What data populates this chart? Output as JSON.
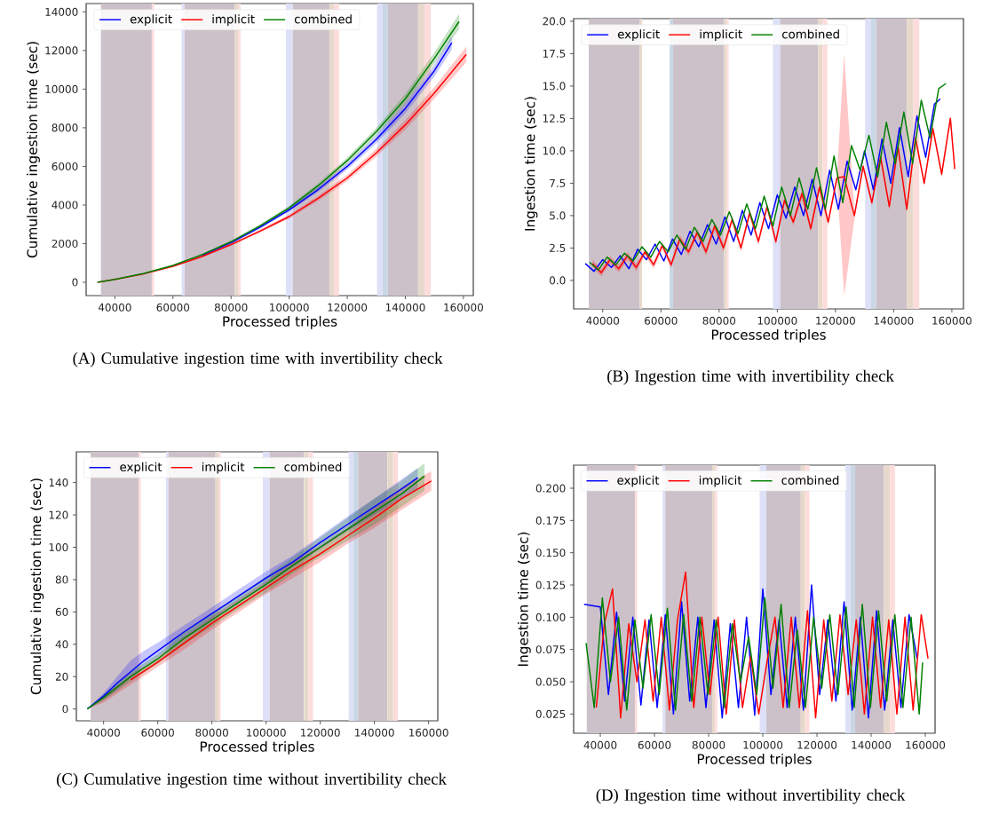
{
  "chart_data": [
    {
      "type": "line",
      "title": "(A) Cumulative ingestion time with invertibility check",
      "xlabel": "Processed triples",
      "ylabel": "Cumulative ingestion time (sec)",
      "xlim": [
        30100,
        163400
      ],
      "ylim": [
        -690,
        14430
      ],
      "xticks": [
        40000,
        60000,
        80000,
        100000,
        120000,
        140000,
        160000
      ],
      "yticks": [
        0,
        2000,
        4000,
        6000,
        8000,
        10000,
        12000,
        14000
      ],
      "legend": "top left",
      "bands": [
        {
          "axis": "x",
          "from": 35200,
          "to": 52700,
          "color": "#cdc1c9"
        },
        {
          "axis": "x",
          "from": 52700,
          "to": 53500,
          "color": "#fddcdc"
        },
        {
          "axis": "x",
          "from": 63000,
          "to": 64000,
          "color": "#dde0f7"
        },
        {
          "axis": "x",
          "from": 64000,
          "to": 81250,
          "color": "#cdc1c9"
        },
        {
          "axis": "x",
          "from": 81250,
          "to": 82600,
          "color": "#e6d9cb"
        },
        {
          "axis": "x",
          "from": 82600,
          "to": 83300,
          "color": "#fddcdc"
        },
        {
          "axis": "x",
          "from": 98900,
          "to": 101200,
          "color": "#dde0f7"
        },
        {
          "axis": "x",
          "from": 101200,
          "to": 113850,
          "color": "#cdc1c9"
        },
        {
          "axis": "x",
          "from": 113850,
          "to": 115400,
          "color": "#e6d9cb"
        },
        {
          "axis": "x",
          "from": 115400,
          "to": 117200,
          "color": "#fddcdc"
        },
        {
          "axis": "x",
          "from": 130250,
          "to": 132200,
          "color": "#dde0f7"
        },
        {
          "axis": "x",
          "from": 132200,
          "to": 134000,
          "color": "#c9d7e5"
        },
        {
          "axis": "x",
          "from": 134000,
          "to": 144400,
          "color": "#cdc1c9"
        },
        {
          "axis": "x",
          "from": 144400,
          "to": 146550,
          "color": "#e6d9cb"
        },
        {
          "axis": "x",
          "from": 146550,
          "to": 148800,
          "color": "#fddcdc"
        }
      ],
      "series": [
        {
          "name": "explicit",
          "color": "#0000ff",
          "x": [
            34000,
            40000,
            50000,
            60000,
            70000,
            80000,
            90000,
            100000,
            110000,
            120000,
            130000,
            140000,
            150000,
            156000
          ],
          "values": [
            null,
            null,
            null,
            null,
            1400,
            2050,
            2850,
            3750,
            4800,
            6000,
            7400,
            9000,
            10950,
            12400
          ],
          "lower": [
            0,
            140,
            430,
            820,
            1360,
            1990,
            2770,
            3650,
            4670,
            5840,
            7200,
            8750,
            10650,
            12050
          ],
          "upper": [
            0,
            160,
            470,
            880,
            1440,
            2110,
            2930,
            3850,
            4930,
            6160,
            7600,
            9250,
            11250,
            12750
          ]
        },
        {
          "name": "implicit",
          "color": "#ff0000",
          "x": [
            34000,
            40000,
            50000,
            60000,
            70000,
            80000,
            90000,
            100000,
            110000,
            120000,
            130000,
            140000,
            150000,
            161000
          ],
          "values": [
            0,
            150,
            440,
            820,
            1330,
            1950,
            2650,
            3400,
            4350,
            5400,
            6700,
            8150,
            9800,
            11800
          ],
          "lower": [
            0,
            135,
            420,
            790,
            1290,
            1890,
            2570,
            3300,
            4220,
            5240,
            6500,
            7900,
            9500,
            11400
          ],
          "upper": [
            0,
            155,
            460,
            850,
            1370,
            2010,
            2730,
            3500,
            4480,
            5560,
            6900,
            8400,
            10100,
            12200
          ]
        },
        {
          "name": "combined",
          "color": "#008000",
          "x": [
            34000,
            40000,
            50000,
            60000,
            70000,
            80000,
            90000,
            100000,
            110000,
            120000,
            130000,
            140000,
            150000,
            158500
          ],
          "values": [
            0,
            150,
            460,
            870,
            1430,
            2100,
            2920,
            3850,
            5000,
            6300,
            7800,
            9500,
            11600,
            13500
          ],
          "lower": [
            0,
            140,
            440,
            840,
            1390,
            2040,
            2840,
            3750,
            4870,
            6140,
            7600,
            9250,
            11300,
            13100
          ],
          "upper": [
            0,
            160,
            480,
            900,
            1470,
            2160,
            3000,
            3950,
            5130,
            6460,
            8000,
            9750,
            11900,
            13900
          ]
        }
      ]
    },
    {
      "type": "line",
      "title": "(B) Ingestion time with invertibility check",
      "xlabel": "Processed triples",
      "ylabel": "Ingestion time (sec)",
      "xlim": [
        30000,
        164000
      ],
      "ylim": [
        -2.2,
        20.2
      ],
      "xticks": [
        40000,
        60000,
        80000,
        100000,
        120000,
        140000,
        160000
      ],
      "yticks": [
        {
          "value": 0,
          "label": "0.0"
        },
        {
          "value": 2.5,
          "label": "2.5"
        },
        {
          "value": 5,
          "label": "5.0"
        },
        {
          "value": 7.5,
          "label": "7.5"
        },
        {
          "value": 10,
          "label": "10.0"
        },
        {
          "value": 12.5,
          "label": "12.5"
        },
        {
          "value": 15,
          "label": "15.0"
        },
        {
          "value": 17.5,
          "label": "17.5"
        },
        {
          "value": 20,
          "label": "20.0"
        }
      ],
      "legend": "top left",
      "bands": [
        {
          "axis": "x",
          "from": 35200,
          "to": 52700,
          "color": "#cdc1c9"
        },
        {
          "axis": "x",
          "from": 52700,
          "to": 53500,
          "color": "#e6d9cb"
        },
        {
          "axis": "x",
          "from": 63000,
          "to": 64200,
          "color": "#c9d7e5"
        },
        {
          "axis": "x",
          "from": 64200,
          "to": 81700,
          "color": "#cdc1c9"
        },
        {
          "axis": "x",
          "from": 81700,
          "to": 82600,
          "color": "#e6d9cb"
        },
        {
          "axis": "x",
          "from": 82600,
          "to": 83300,
          "color": "#fddcdc"
        },
        {
          "axis": "x",
          "from": 98500,
          "to": 101000,
          "color": "#dde0f7"
        },
        {
          "axis": "x",
          "from": 101000,
          "to": 114000,
          "color": "#cdc1c9"
        },
        {
          "axis": "x",
          "from": 114000,
          "to": 115600,
          "color": "#e6d9cb"
        },
        {
          "axis": "x",
          "from": 115600,
          "to": 117200,
          "color": "#fddcdc"
        },
        {
          "axis": "x",
          "from": 130200,
          "to": 132200,
          "color": "#dde0f7"
        },
        {
          "axis": "x",
          "from": 132200,
          "to": 134000,
          "color": "#c9d7e5"
        },
        {
          "axis": "x",
          "from": 134000,
          "to": 144500,
          "color": "#cdc1c9"
        },
        {
          "axis": "x",
          "from": 144500,
          "to": 146700,
          "color": "#e6d9cb"
        },
        {
          "axis": "x",
          "from": 146700,
          "to": 148800,
          "color": "#fddcdc"
        }
      ],
      "series": [
        {
          "name": "explicit",
          "color": "#0000ff",
          "x": [
            34000,
            37000,
            40000,
            43000,
            46000,
            49000,
            52000,
            55000,
            58000,
            61000,
            64000,
            67000,
            70000,
            73000,
            76000,
            79000,
            82000,
            85000,
            88000,
            91000,
            94000,
            97000,
            100000,
            103000,
            106000,
            109000,
            112000,
            115000,
            118000,
            121000,
            124000,
            127000,
            130000,
            133000,
            136000,
            139000,
            142000,
            145000,
            148000,
            151000,
            154000,
            156000
          ],
          "values": [
            1.3,
            0.7,
            1.6,
            1.0,
            1.9,
            0.9,
            2.4,
            1.6,
            2.8,
            1.5,
            3.2,
            2.0,
            3.8,
            2.6,
            4.3,
            2.8,
            4.9,
            3.0,
            5.4,
            3.5,
            6.0,
            4.0,
            6.6,
            4.8,
            7.2,
            5.0,
            7.8,
            5.0,
            8.5,
            5.5,
            9.2,
            7.0,
            10.0,
            7.0,
            10.9,
            7.5,
            11.8,
            8.0,
            12.7,
            9.5,
            13.6,
            14.0
          ]
        },
        {
          "name": "implicit",
          "color": "#ff0000",
          "x": [
            36500,
            39500,
            42500,
            45500,
            48500,
            51500,
            54500,
            57500,
            60500,
            63500,
            66500,
            69500,
            72500,
            75500,
            78500,
            81500,
            84500,
            87500,
            90500,
            93500,
            96500,
            99500,
            102500,
            105500,
            108500,
            111500,
            114500,
            117500,
            120500,
            123000,
            126500,
            129500,
            132500,
            135500,
            138500,
            141500,
            144500,
            147500,
            150500,
            153500,
            156500,
            159500,
            161000
          ],
          "values": [
            1.3,
            0.6,
            1.6,
            0.9,
            1.9,
            1.0,
            2.2,
            1.2,
            2.7,
            1.2,
            3.2,
            2.2,
            3.7,
            2.2,
            4.2,
            2.5,
            4.7,
            2.5,
            5.2,
            3.0,
            5.7,
            3.0,
            6.2,
            4.5,
            6.7,
            4.0,
            7.2,
            4.5,
            7.9,
            8.0,
            5.0,
            8.8,
            6.0,
            9.5,
            5.7,
            10.3,
            5.5,
            11.0,
            7.5,
            11.7,
            8.2,
            12.5,
            8.6
          ],
          "lower": [
            1.0,
            0.3,
            1.3,
            0.6,
            1.6,
            0.7,
            1.9,
            0.9,
            2.4,
            0.9,
            2.9,
            1.9,
            3.4,
            1.9,
            3.9,
            2.2,
            4.4,
            2.2,
            4.9,
            2.7,
            5.4,
            2.7,
            5.9,
            4.2,
            6.4,
            3.7,
            6.9,
            4.2,
            7.6,
            -1.2,
            4.7,
            8.5,
            5.7,
            9.2,
            5.4,
            10.0,
            5.2,
            10.7,
            7.2,
            11.4,
            7.9,
            12.2,
            8.3
          ],
          "upper": [
            1.6,
            0.9,
            1.9,
            1.2,
            2.2,
            1.3,
            2.5,
            1.5,
            3.0,
            1.5,
            3.5,
            2.5,
            4.0,
            2.5,
            4.5,
            2.8,
            5.0,
            2.8,
            5.5,
            3.3,
            6.0,
            3.3,
            6.5,
            4.8,
            7.0,
            4.3,
            7.5,
            4.8,
            8.2,
            17.5,
            5.3,
            9.1,
            6.3,
            9.8,
            6.0,
            10.6,
            5.8,
            11.3,
            7.8,
            12.0,
            8.5,
            12.8,
            8.9
          ]
        },
        {
          "name": "combined",
          "color": "#008000",
          "x": [
            35500,
            38500,
            41500,
            44500,
            47500,
            50500,
            53500,
            56500,
            59500,
            62500,
            65500,
            68500,
            71500,
            74500,
            77500,
            80500,
            83500,
            86500,
            89500,
            92500,
            95500,
            98500,
            101500,
            104500,
            107500,
            110500,
            113500,
            116500,
            119500,
            122500,
            125500,
            128500,
            131500,
            134500,
            137500,
            140500,
            143500,
            146500,
            149500,
            152500,
            155500,
            158000
          ],
          "values": [
            1.4,
            0.8,
            1.8,
            1.2,
            2.1,
            1.5,
            2.6,
            1.8,
            3.0,
            2.2,
            3.5,
            2.4,
            4.1,
            3.0,
            4.7,
            3.5,
            5.3,
            3.6,
            5.9,
            4.0,
            6.5,
            4.2,
            7.2,
            5.0,
            7.9,
            5.5,
            8.7,
            5.5,
            9.6,
            6.0,
            10.4,
            8.5,
            11.2,
            8.0,
            12.2,
            9.0,
            13.0,
            9.0,
            13.9,
            11.0,
            14.8,
            15.2
          ]
        }
      ]
    },
    {
      "type": "line",
      "title": "(C) Cumulative ingestion time without invertibility check",
      "xlabel": "Processed triples",
      "ylabel": "Cumulative ingestion time (sec)",
      "xlim": [
        29940,
        163400
      ],
      "ylim": [
        -7.3,
        159
      ],
      "xticks": [
        40000,
        60000,
        80000,
        100000,
        120000,
        140000,
        160000
      ],
      "yticks": [
        0,
        20,
        40,
        60,
        80,
        100,
        120,
        140
      ],
      "legend": "top left",
      "bands": [
        {
          "axis": "x",
          "from": 35200,
          "to": 52900,
          "color": "#cdc1c9"
        },
        {
          "axis": "x",
          "from": 52900,
          "to": 53700,
          "color": "#fddcdc"
        },
        {
          "axis": "x",
          "from": 63000,
          "to": 64000,
          "color": "#dde0f7"
        },
        {
          "axis": "x",
          "from": 64000,
          "to": 81300,
          "color": "#cdc1c9"
        },
        {
          "axis": "x",
          "from": 81300,
          "to": 82400,
          "color": "#e6d9cb"
        },
        {
          "axis": "x",
          "from": 82400,
          "to": 83200,
          "color": "#fddcdc"
        },
        {
          "axis": "x",
          "from": 98800,
          "to": 101300,
          "color": "#dde0f7"
        },
        {
          "axis": "x",
          "from": 101300,
          "to": 114000,
          "color": "#cdc1c9"
        },
        {
          "axis": "x",
          "from": 114000,
          "to": 115700,
          "color": "#e6d9cb"
        },
        {
          "axis": "x",
          "from": 115700,
          "to": 117300,
          "color": "#fddcdc"
        },
        {
          "axis": "x",
          "from": 130500,
          "to": 132300,
          "color": "#dde0f7"
        },
        {
          "axis": "x",
          "from": 132300,
          "to": 134000,
          "color": "#c9d7e5"
        },
        {
          "axis": "x",
          "from": 134000,
          "to": 144800,
          "color": "#cdc1c9"
        },
        {
          "axis": "x",
          "from": 144800,
          "to": 146900,
          "color": "#e6d9cb"
        },
        {
          "axis": "x",
          "from": 146900,
          "to": 148700,
          "color": "#fddcdc"
        }
      ],
      "series": [
        {
          "name": "explicit",
          "color": "#0000ff",
          "x": [
            34000,
            40000,
            45000,
            50000,
            55000,
            60000,
            70000,
            80000,
            90000,
            100000,
            110000,
            120000,
            130000,
            140000,
            150000,
            156000
          ],
          "values": [
            0,
            8,
            16,
            23,
            30,
            36,
            48,
            59,
            70,
            81,
            91,
            103,
            114,
            125,
            136,
            143
          ],
          "lower": [
            0,
            6,
            12,
            19,
            26,
            32,
            44,
            55,
            66,
            77,
            88,
            99,
            110,
            120,
            130,
            136
          ],
          "upper": [
            0,
            10,
            20,
            30,
            36,
            41,
            52,
            63,
            74,
            85,
            95,
            107,
            119,
            130,
            142,
            149
          ]
        },
        {
          "name": "implicit",
          "color": "#ff0000",
          "x": [
            34000,
            40000,
            50000,
            60000,
            70000,
            80000,
            90000,
            100000,
            110000,
            120000,
            130000,
            140000,
            150000,
            161000
          ],
          "values": [
            null,
            null,
            18,
            29,
            41,
            53,
            64,
            75,
            86,
            96,
            107,
            118,
            130,
            141
          ],
          "lower": [
            0,
            4,
            15,
            26,
            37,
            49,
            60,
            71,
            81,
            91,
            102,
            112,
            123,
            135
          ],
          "upper": [
            0,
            8,
            21,
            32,
            45,
            57,
            68,
            79,
            91,
            101,
            112,
            124,
            137,
            147
          ]
        },
        {
          "name": "combined",
          "color": "#008000",
          "x": [
            34000,
            40000,
            50000,
            60000,
            70000,
            80000,
            90000,
            100000,
            110000,
            120000,
            130000,
            140000,
            150000,
            158500
          ],
          "values": [
            0,
            7,
            20,
            31,
            44,
            55,
            66,
            77,
            89,
            100,
            111,
            122,
            133,
            144
          ],
          "lower": [
            0,
            5,
            17,
            28,
            40,
            51,
            62,
            72,
            84,
            94,
            104,
            114,
            125,
            135
          ],
          "upper": [
            0,
            9,
            23,
            34,
            48,
            59,
            70,
            82,
            94,
            106,
            118,
            130,
            141,
            152
          ]
        }
      ]
    },
    {
      "type": "line",
      "title": "(D) Ingestion time without invertibility check",
      "xlabel": "Processed triples",
      "ylabel": "Ingestion time (sec)",
      "xlim": [
        30150,
        163600
      ],
      "ylim": [
        0.0101,
        0.2179
      ],
      "xticks": [
        40000,
        60000,
        80000,
        100000,
        120000,
        140000,
        160000
      ],
      "yticks": [
        {
          "value": 0.025,
          "label": "0.025"
        },
        {
          "value": 0.05,
          "label": "0.050"
        },
        {
          "value": 0.075,
          "label": "0.075"
        },
        {
          "value": 0.1,
          "label": "0.100"
        },
        {
          "value": 0.125,
          "label": "0.125"
        },
        {
          "value": 0.15,
          "label": "0.150"
        },
        {
          "value": 0.175,
          "label": "0.175"
        },
        {
          "value": 0.2,
          "label": "0.200"
        }
      ],
      "legend": "top left",
      "bands": [
        {
          "axis": "x",
          "from": 35000,
          "to": 52800,
          "color": "#cdc1c9"
        },
        {
          "axis": "x",
          "from": 52800,
          "to": 53600,
          "color": "#fddcdc"
        },
        {
          "axis": "x",
          "from": 63000,
          "to": 64000,
          "color": "#dde0f7"
        },
        {
          "axis": "x",
          "from": 64000,
          "to": 81300,
          "color": "#cdc1c9"
        },
        {
          "axis": "x",
          "from": 81300,
          "to": 82400,
          "color": "#e6d9cb"
        },
        {
          "axis": "x",
          "from": 82400,
          "to": 83200,
          "color": "#fddcdc"
        },
        {
          "axis": "x",
          "from": 98800,
          "to": 101300,
          "color": "#dde0f7"
        },
        {
          "axis": "x",
          "from": 101300,
          "to": 114000,
          "color": "#cdc1c9"
        },
        {
          "axis": "x",
          "from": 114000,
          "to": 115600,
          "color": "#e6d9cb"
        },
        {
          "axis": "x",
          "from": 115600,
          "to": 117200,
          "color": "#fddcdc"
        },
        {
          "axis": "x",
          "from": 130400,
          "to": 132300,
          "color": "#dde0f7"
        },
        {
          "axis": "x",
          "from": 132300,
          "to": 134100,
          "color": "#c9d7e5"
        },
        {
          "axis": "x",
          "from": 134100,
          "to": 144800,
          "color": "#cdc1c9"
        },
        {
          "axis": "x",
          "from": 144800,
          "to": 146900,
          "color": "#e6d9cb"
        },
        {
          "axis": "x",
          "from": 146900,
          "to": 148800,
          "color": "#fddcdc"
        }
      ],
      "series": [
        {
          "name": "explicit",
          "color": "#0000ff",
          "x": [
            34000,
            37000,
            40000,
            43000,
            46000,
            49000,
            52000,
            55000,
            58000,
            61000,
            64000,
            67000,
            70000,
            73000,
            76000,
            79000,
            82000,
            85000,
            88000,
            91000,
            94000,
            97000,
            100000,
            103000,
            106000,
            109000,
            112000,
            115000,
            118000,
            121000,
            124000,
            127000,
            130000,
            133000,
            136000,
            139000,
            142000,
            145000,
            148000,
            151000,
            154000,
            157000
          ],
          "values": [
            0.11,
            null,
            0.108,
            0.04,
            0.104,
            0.035,
            0.1,
            0.032,
            0.098,
            0.03,
            0.102,
            0.025,
            0.112,
            0.035,
            0.1,
            0.03,
            0.098,
            0.022,
            0.095,
            0.03,
            0.1,
            0.024,
            0.122,
            0.04,
            0.098,
            0.03,
            0.1,
            0.028,
            0.125,
            0.04,
            0.098,
            0.035,
            0.112,
            0.028,
            0.1,
            0.022,
            0.105,
            0.028,
            0.098,
            0.03,
            0.102,
            0.068
          ]
        },
        {
          "name": "implicit",
          "color": "#ff0000",
          "x": [
            38500,
            41500,
            44500,
            47500,
            50500,
            53500,
            56500,
            59500,
            62500,
            65500,
            68500,
            71500,
            74500,
            77500,
            80500,
            83500,
            86500,
            89500,
            92500,
            95500,
            98500,
            101500,
            104500,
            107500,
            110500,
            113500,
            116500,
            119500,
            122500,
            125500,
            128500,
            131500,
            134500,
            137500,
            140500,
            143500,
            146500,
            149500,
            152500,
            155500,
            158500,
            161000
          ],
          "values": [
            0.03,
            0.095,
            0.122,
            0.022,
            0.095,
            0.05,
            0.098,
            0.035,
            0.1,
            0.028,
            0.098,
            0.135,
            0.03,
            0.1,
            0.04,
            0.1,
            0.025,
            0.098,
            0.03,
            0.07,
            0.025,
            0.065,
            0.1,
            0.03,
            0.1,
            0.03,
            0.105,
            0.022,
            0.098,
            0.035,
            0.102,
            0.04,
            0.098,
            0.025,
            0.1,
            0.03,
            0.098,
            0.025,
            0.1,
            0.028,
            0.102,
            0.068
          ]
        },
        {
          "name": "combined",
          "color": "#008000",
          "x": [
            34750,
            37750,
            40750,
            43750,
            46750,
            49750,
            52750,
            55750,
            58750,
            61750,
            64750,
            67750,
            70750,
            73750,
            76750,
            79750,
            82750,
            85750,
            88750,
            91750,
            94750,
            97750,
            100750,
            103750,
            106750,
            109750,
            112750,
            115750,
            118750,
            121750,
            124750,
            127750,
            130750,
            133750,
            136750,
            139750,
            142750,
            145750,
            148750,
            151750,
            154750,
            157750,
            159000
          ],
          "values": [
            0.08,
            0.03,
            0.115,
            0.05,
            0.1,
            0.028,
            0.098,
            0.045,
            0.102,
            0.04,
            0.107,
            0.028,
            0.102,
            0.035,
            0.1,
            0.04,
            0.098,
            0.03,
            0.095,
            0.05,
            0.085,
            0.04,
            0.115,
            0.045,
            0.11,
            0.03,
            0.09,
            0.03,
            0.1,
            0.045,
            0.102,
            0.04,
            0.108,
            0.03,
            0.11,
            0.03,
            0.105,
            0.035,
            0.102,
            0.03,
            0.1,
            0.025,
            0.065
          ]
        }
      ]
    }
  ]
}
